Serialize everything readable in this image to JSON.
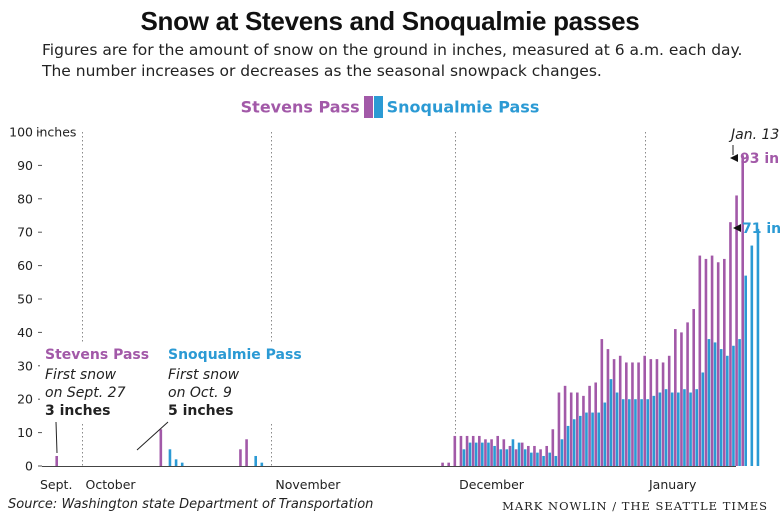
{
  "title": "Snow at Stevens and Snoqualmie passes",
  "subtitle_line1": "Figures are for the amount of snow on the ground in inches, measured at 6 a.m. each day.",
  "subtitle_line2": "The number increases or decreases as the seasonal snowpack changes.",
  "source": "Source: Washington state Department of Transportation",
  "credit": "MARK NOWLIN / THE SEATTLE TIMES",
  "colors": {
    "stevens": "#a259a8",
    "snoqualmie": "#2b9ad4"
  },
  "annotations": {
    "stevens": {
      "head": "Stevens Pass",
      "line1": "First snow",
      "line2": "on Sept. 27",
      "line3": "3 inches"
    },
    "snoqualmie": {
      "head": "Snoqualmie Pass",
      "line1": "First snow",
      "line2": "on Oct. 9",
      "line3": "5 inches"
    },
    "end_date": "Jan. 13",
    "end_stevens": "93 in.",
    "end_snoqualmie": "71 in."
  },
  "chart_data": {
    "type": "bar",
    "ylabel": "inches",
    "ylim": [
      0,
      100
    ],
    "yticks": [
      0,
      10,
      20,
      30,
      40,
      50,
      60,
      70,
      80,
      90,
      100
    ],
    "x_start": "Sept. 27",
    "x_end": "Jan. 13",
    "month_labels": [
      {
        "label": "Sept.",
        "day": 0
      },
      {
        "label": "October",
        "day": 4
      },
      {
        "label": "November",
        "day": 35
      },
      {
        "label": "December",
        "day": 65
      },
      {
        "label": "January",
        "day": 96
      }
    ],
    "grid": "vertical dotted lines at month starts",
    "legend": "top-center",
    "series": [
      {
        "name": "Stevens Pass",
        "values": [
          3,
          0,
          0,
          0,
          0,
          0,
          0,
          0,
          0,
          0,
          0,
          0,
          0,
          0,
          0,
          0,
          0,
          11,
          0,
          0,
          0,
          0,
          0,
          0,
          0,
          0,
          0,
          0,
          0,
          0,
          5,
          8,
          0,
          0,
          0,
          0,
          0,
          0,
          0,
          0,
          0,
          0,
          0,
          0,
          0,
          0,
          0,
          0,
          0,
          0,
          0,
          0,
          0,
          0,
          0,
          0,
          0,
          0,
          0,
          0,
          0,
          0,
          0,
          1,
          1,
          9,
          9,
          9,
          9,
          9,
          8,
          8,
          9,
          8,
          6,
          5,
          7,
          6,
          6,
          5,
          6,
          11,
          22,
          24,
          22,
          22,
          21,
          24,
          25,
          38,
          35,
          32,
          33,
          31,
          31,
          31,
          33,
          32,
          32,
          31,
          33,
          41,
          40,
          43,
          47,
          63,
          62,
          63,
          61,
          62,
          73,
          81,
          93
        ]
      },
      {
        "name": "Snoqualmie Pass",
        "values": [
          0,
          0,
          0,
          0,
          0,
          0,
          0,
          0,
          0,
          0,
          0,
          0,
          0,
          0,
          0,
          0,
          0,
          0,
          5,
          2,
          1,
          0,
          0,
          0,
          0,
          0,
          0,
          0,
          0,
          0,
          0,
          0,
          3,
          1,
          0,
          0,
          0,
          0,
          0,
          0,
          0,
          0,
          0,
          0,
          0,
          0,
          0,
          0,
          0,
          0,
          0,
          0,
          0,
          0,
          0,
          0,
          0,
          0,
          0,
          0,
          0,
          0,
          0,
          0,
          0,
          0,
          5,
          7,
          7,
          7,
          7,
          6,
          5,
          5,
          8,
          7,
          5,
          4,
          4,
          3,
          4,
          3,
          8,
          12,
          14,
          15,
          16,
          16,
          16,
          19,
          26,
          22,
          20,
          20,
          20,
          20,
          20,
          21,
          22,
          23,
          22,
          22,
          23,
          22,
          23,
          28,
          38,
          37,
          35,
          33,
          36,
          38,
          57,
          66,
          71
        ]
      }
    ]
  }
}
